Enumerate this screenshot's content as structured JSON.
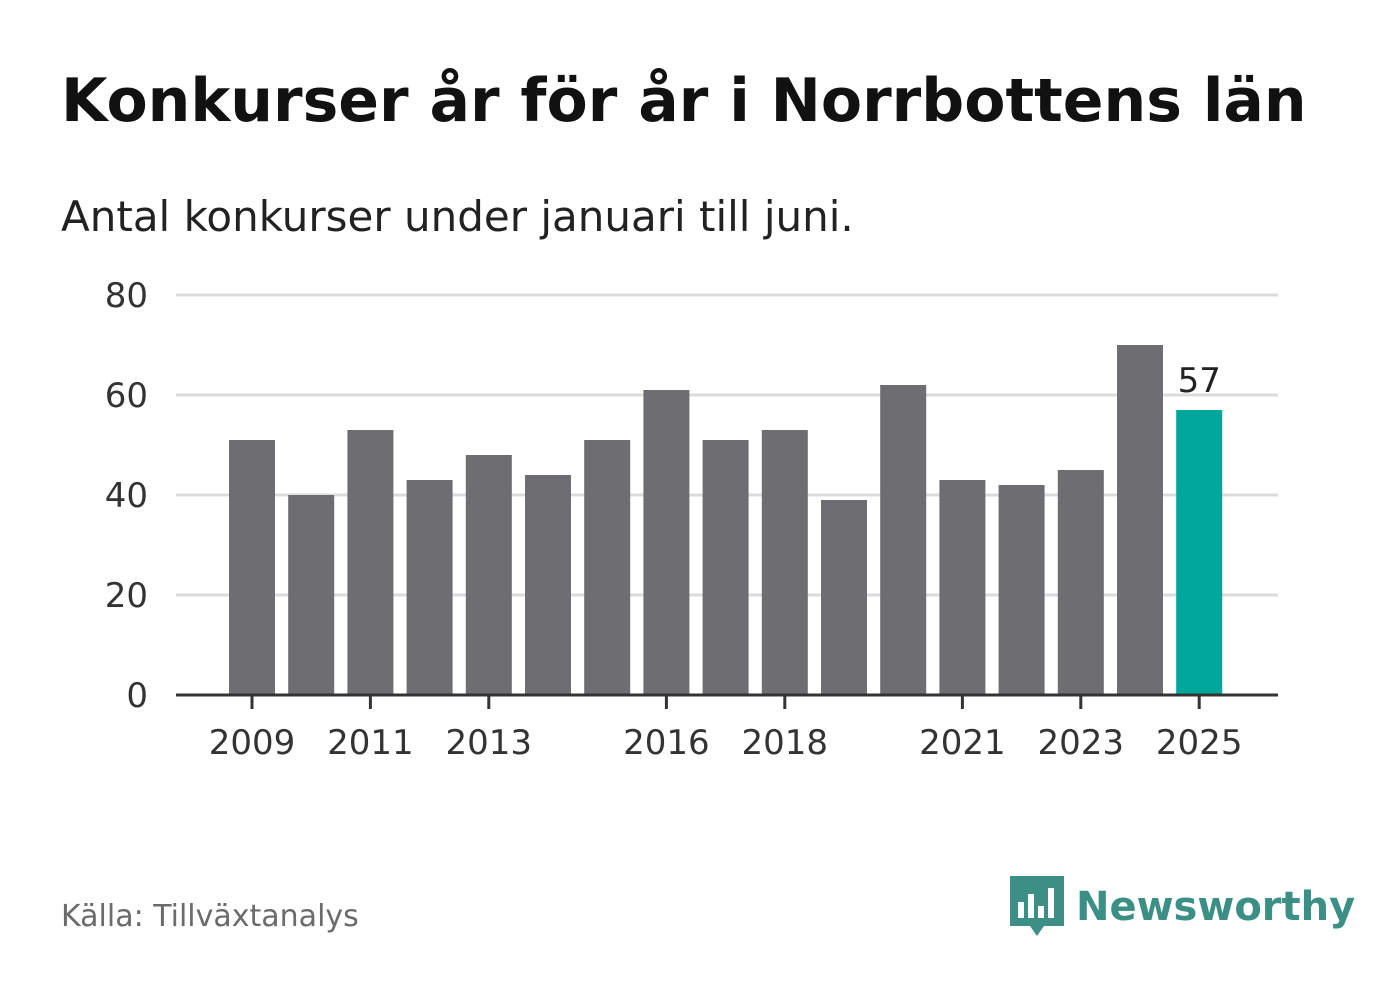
{
  "title": "Konkurser år för år i Norrbottens län",
  "subtitle": "Antal konkurser under januari till juni.",
  "source": "Källa: Tillväxtanalys",
  "brand": {
    "name": "Newsworthy",
    "logo_icon": "bar-chart-speech-bubble-icon"
  },
  "colors": {
    "bar": "#6e6d72",
    "highlight": "#00a59b",
    "grid": "#dcdcdc",
    "axis": "#333333",
    "brand": "#3b8f84"
  },
  "chart_data": {
    "type": "bar",
    "categories": [
      "2009",
      "2010",
      "2011",
      "2012",
      "2013",
      "2014",
      "2015",
      "2016",
      "2017",
      "2018",
      "2019",
      "2020",
      "2021",
      "2022",
      "2023",
      "2024",
      "2025"
    ],
    "values": [
      51,
      40,
      53,
      43,
      48,
      44,
      51,
      61,
      51,
      53,
      39,
      62,
      43,
      42,
      45,
      70,
      57
    ],
    "highlight_category": "2025",
    "x_tick_labels": [
      "2009",
      "2011",
      "2013",
      "2016",
      "2018",
      "2021",
      "2023",
      "2025"
    ],
    "y_ticks": [
      0,
      20,
      40,
      60,
      80
    ],
    "ylim": [
      0,
      80
    ],
    "data_labels": [
      {
        "category": "2025",
        "text": "57"
      }
    ],
    "grid": true,
    "xlabel": "",
    "ylabel": ""
  }
}
